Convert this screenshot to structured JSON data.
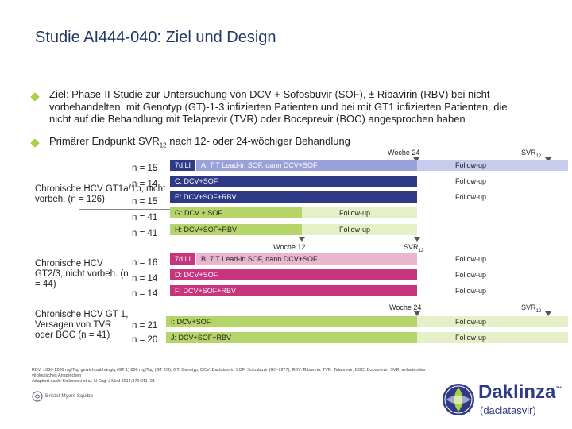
{
  "title": "Studie AI444-040: Ziel und Design",
  "bullets": [
    "Ziel: Phase-II-Studie zur Untersuchung von DCV + Sofosbuvir (SOF), ± Ribavirin (RBV) bei nicht vorbehandelten, mit Genotyp (GT)-1-3 infizierten Patienten und bei mit GT1 infizierten Patienten, die nicht auf die Behandlung mit Telaprevir (TVR) oder Boceprevir (BOC) angesprochen haben",
    "Primärer Endpunkt SVR12 nach 12- oder 24-wöchiger Behandlung"
  ],
  "bullet2": {
    "pre": "Primärer Endpunkt SVR",
    "sub": "12",
    "post": " nach 12- oder 24-wöchiger Behandlung"
  },
  "milestones": {
    "woche24": "Woche 24",
    "woche12": "Woche 12",
    "svr": "SVR",
    "svr_sub": "12"
  },
  "groups": {
    "g1": "Chronische HCV GT1a/1b, nicht vorbeh. (n = 126)",
    "g2": "Chronische HCV GT2/3, nicht vorbeh. (n = 44)",
    "g3": "Chronische HCV GT 1, Versagen von TVR oder BOC (n = 41)"
  },
  "rows": [
    {
      "n": "n = 15",
      "lead": "7d.LI",
      "label": "A: 7 T Lead-in SOF, dann DCV+SOF",
      "follow": "Follow-up"
    },
    {
      "n": "n = 14",
      "label": "C: DCV+SOF",
      "follow": "Follow-up"
    },
    {
      "n": "n = 15",
      "label": "E: DCV+SOF+RBV",
      "follow": "Follow-up"
    },
    {
      "n": "n = 41",
      "label": "G: DCV + SOF",
      "follow": "Follow-up"
    },
    {
      "n": "n = 41",
      "label": "H: DCV+SOF+RBV",
      "follow": "Follow-up"
    },
    {
      "n": "n = 16",
      "lead": "7d.LI",
      "label": "B: 7 T Lead-in SOF, dann DCV+SOF",
      "follow": "Follow-up"
    },
    {
      "n": "n = 14",
      "label": "D: DCV+SOF",
      "follow": "Follow-up"
    },
    {
      "n": "n = 14",
      "label": "F: DCV+SOF+RBV",
      "follow": "Follow-up"
    },
    {
      "n": "n = 21",
      "label": "I: DCV+SOF",
      "follow": "Follow-up"
    },
    {
      "n": "n = 20",
      "label": "J: DCV+SOF+RBV",
      "follow": "Follow-up"
    }
  ],
  "footnote": [
    "RBV: 1000-1200 mg/Tag gewichtsabhängig (GT 1) 800 mg/Tag (GT 2/3); GT: Genotyp; DCV: Daclatasvir; SOF: Sofosbuvir (GS-7977); RBV: Ribavirin; TVR: Telaprevir; BOC: Boceprevir; SVR: anhaltendes",
    "virologisches Ansprechen",
    "Adaptiert nach: Sulkowski et al. N Engl J Med 2014;370:211–21"
  ],
  "logos": {
    "bms": "Bristol-Myers Squibb",
    "brand": "Daklinza",
    "brand_sup": "™",
    "generic": "(daclatasvir)"
  },
  "colors": {
    "navy": "#2e3a87",
    "lavender": "#9aa0d8",
    "lavender_light": "#c7cbec",
    "green": "#b5d56a",
    "green_light": "#e6f0c8",
    "pink": "#c8357d",
    "pink_light": "#e9b5cf",
    "bullet": "#a8cf45",
    "title": "#1f3864"
  }
}
